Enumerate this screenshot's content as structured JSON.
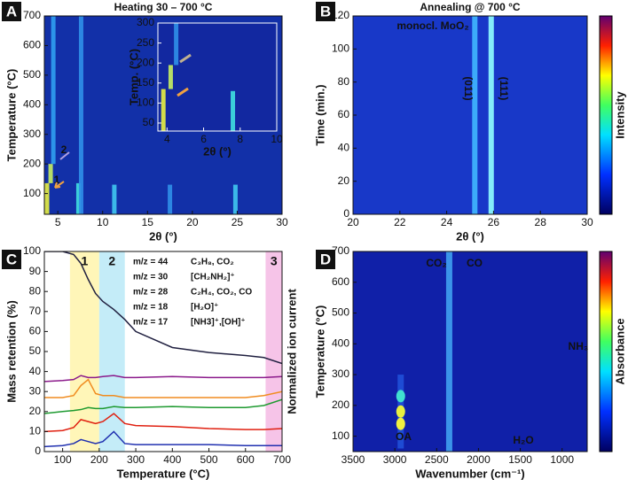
{
  "panel_labels": [
    "A",
    "B",
    "C",
    "D"
  ],
  "chart_data": [
    {
      "type": "heatmap",
      "title": "Heating 30 – 700 °C",
      "xlabel": "2θ (°)",
      "ylabel": "Temperature (°C)",
      "xlim": [
        3.5,
        30
      ],
      "xticks": [
        5,
        10,
        15,
        20,
        25,
        30
      ],
      "ylim": [
        30,
        700
      ],
      "yticks": [
        100,
        200,
        300,
        400,
        500,
        600,
        700
      ],
      "background": "#1230a8",
      "streaks": [
        {
          "x": 3.8,
          "y": [
            30,
            135
          ],
          "color": "#e8f040"
        },
        {
          "x": 4.2,
          "y": [
            135,
            200
          ],
          "color": "#c8f060"
        },
        {
          "x": 4.5,
          "y": [
            200,
            700
          ],
          "color": "#30a0f0"
        },
        {
          "x": 7.3,
          "y": [
            30,
            135
          ],
          "color": "#40e0e0"
        },
        {
          "x": 7.6,
          "y": [
            30,
            700
          ],
          "color": "#3090e8"
        },
        {
          "x": 11.3,
          "y": [
            30,
            130
          ],
          "color": "#40c8f0"
        },
        {
          "x": 17.5,
          "y": [
            30,
            130
          ],
          "color": "#3090e8"
        },
        {
          "x": 24.8,
          "y": [
            30,
            130
          ],
          "color": "#40c8f0"
        }
      ],
      "annotations": [
        "1",
        "2"
      ]
    },
    {
      "type": "heatmap",
      "xlabel": "2θ (°)",
      "ylabel": "Temp. (°C)",
      "xlim": [
        3.5,
        10
      ],
      "xticks": [
        4,
        6,
        8,
        10
      ],
      "ylim": [
        30,
        300
      ],
      "yticks": [
        50,
        100,
        150,
        200,
        250,
        300
      ],
      "background": "#1228a0",
      "streaks": [
        {
          "x": 3.8,
          "y": [
            30,
            135
          ],
          "color": "#e8f040"
        },
        {
          "x": 4.2,
          "y": [
            135,
            195
          ],
          "color": "#c8f060"
        },
        {
          "x": 4.5,
          "y": [
            195,
            300
          ],
          "color": "#3090e8"
        },
        {
          "x": 7.6,
          "y": [
            30,
            130
          ],
          "color": "#40e0e0"
        }
      ]
    },
    {
      "type": "heatmap",
      "title": "Annealing @ 700 °C",
      "xlabel": "2θ (°)",
      "ylabel": "Time (min.)",
      "xlim": [
        20,
        30
      ],
      "xticks": [
        20,
        22,
        24,
        26,
        28,
        30
      ],
      "ylim": [
        0,
        120
      ],
      "yticks": [
        0,
        20,
        40,
        60,
        80,
        100,
        120
      ],
      "background": "#1838c8",
      "colorbar_label": "Intensity",
      "streaks": [
        {
          "x": 25.2,
          "y": [
            0,
            120
          ],
          "color": "#40b8ff"
        },
        {
          "x": 25.9,
          "y": [
            0,
            120
          ],
          "color": "#90ffff"
        }
      ],
      "annotations": [
        "monocl. MoO₂",
        "(011)",
        "(111)"
      ]
    },
    {
      "type": "line",
      "xlabel": "Temperature (°C)",
      "ylabel": "Mass retention (%)",
      "y2label": "Normalized ion current",
      "xlim": [
        50,
        700
      ],
      "xticks": [
        100,
        200,
        300,
        400,
        500,
        600,
        700
      ],
      "ylim": [
        0,
        100
      ],
      "yticks": [
        0,
        10,
        20,
        30,
        40,
        50,
        60,
        70,
        80,
        90,
        100
      ],
      "y2lim": [
        0,
        100
      ],
      "regions": [
        {
          "label": "1",
          "x": [
            120,
            200
          ],
          "color": "#fff6b8"
        },
        {
          "label": "2",
          "x": [
            200,
            270
          ],
          "color": "#c4ecf8"
        },
        {
          "label": "3",
          "x": [
            655,
            700
          ],
          "color": "#f6c4e8"
        }
      ],
      "x": [
        50,
        100,
        130,
        150,
        170,
        190,
        210,
        240,
        270,
        300,
        400,
        500,
        600,
        650,
        700
      ],
      "series": [
        {
          "color": "#202040",
          "values": [
            100,
            100,
            98.5,
            94,
            86,
            79,
            75,
            71,
            66,
            60,
            52,
            49.5,
            48,
            47,
            44
          ]
        },
        {
          "name": "m/z = 44",
          "species": "C₃H₈, CO₂",
          "color": "#8b1a8b",
          "axis": "y2",
          "values": [
            35,
            35.5,
            36,
            38,
            37,
            37,
            37.5,
            38,
            37,
            37,
            37.5,
            37,
            37,
            37,
            37.5
          ]
        },
        {
          "name": "m/z = 30",
          "species": "[CH₂NH₂]⁺",
          "color": "#f08c20",
          "axis": "y2",
          "values": [
            27,
            27,
            28,
            33,
            36,
            29,
            28,
            28,
            27,
            27,
            27,
            27,
            27,
            28,
            30
          ]
        },
        {
          "name": "m/z = 28",
          "species": "C₂H₄, CO₂, CO",
          "color": "#1e9a30",
          "axis": "y2",
          "values": [
            19,
            20,
            20.5,
            21,
            22,
            21.5,
            21.5,
            22.5,
            22,
            22,
            22.5,
            22,
            22,
            23,
            26
          ]
        },
        {
          "name": "m/z = 18",
          "species": "[H₂O]⁺",
          "color": "#e02010",
          "axis": "y2",
          "values": [
            10,
            10.5,
            12,
            16,
            15,
            14,
            15,
            19,
            14,
            13,
            12.5,
            11.5,
            11,
            11,
            11.5
          ]
        },
        {
          "name": "m/z = 17",
          "species": "[NH3]⁺,[OH]⁺",
          "color": "#2030b0",
          "axis": "y2",
          "values": [
            2.5,
            3,
            4,
            6,
            5,
            4,
            5,
            10,
            4,
            3.5,
            3.5,
            3.5,
            3,
            3,
            3
          ]
        }
      ]
    },
    {
      "type": "heatmap",
      "xlabel": "Wavenumber (cm⁻¹)",
      "ylabel": "Temperature (°C)",
      "xlim": [
        3500,
        700
      ],
      "xticks": [
        3500,
        3000,
        2500,
        2000,
        1500,
        1000
      ],
      "ylim": [
        50,
        700
      ],
      "yticks": [
        100,
        200,
        300,
        400,
        500,
        600,
        700
      ],
      "background": "#1020a8",
      "colorbar_label": "Absorbance",
      "streaks": [
        {
          "x": 2350,
          "y": [
            50,
            700
          ],
          "color": "#40a0f0"
        },
        {
          "x": 2930,
          "y": [
            60,
            300
          ],
          "color": "#2050d8"
        }
      ],
      "spots": [
        {
          "x": 2930,
          "y": 140,
          "color": "#f0f040"
        },
        {
          "x": 2930,
          "y": 180,
          "color": "#e8f040"
        },
        {
          "x": 2930,
          "y": 230,
          "color": "#40e0d0"
        }
      ],
      "annotations": [
        "CO₂",
        "CO",
        "NH₃",
        "OA",
        "H₂O"
      ]
    }
  ]
}
